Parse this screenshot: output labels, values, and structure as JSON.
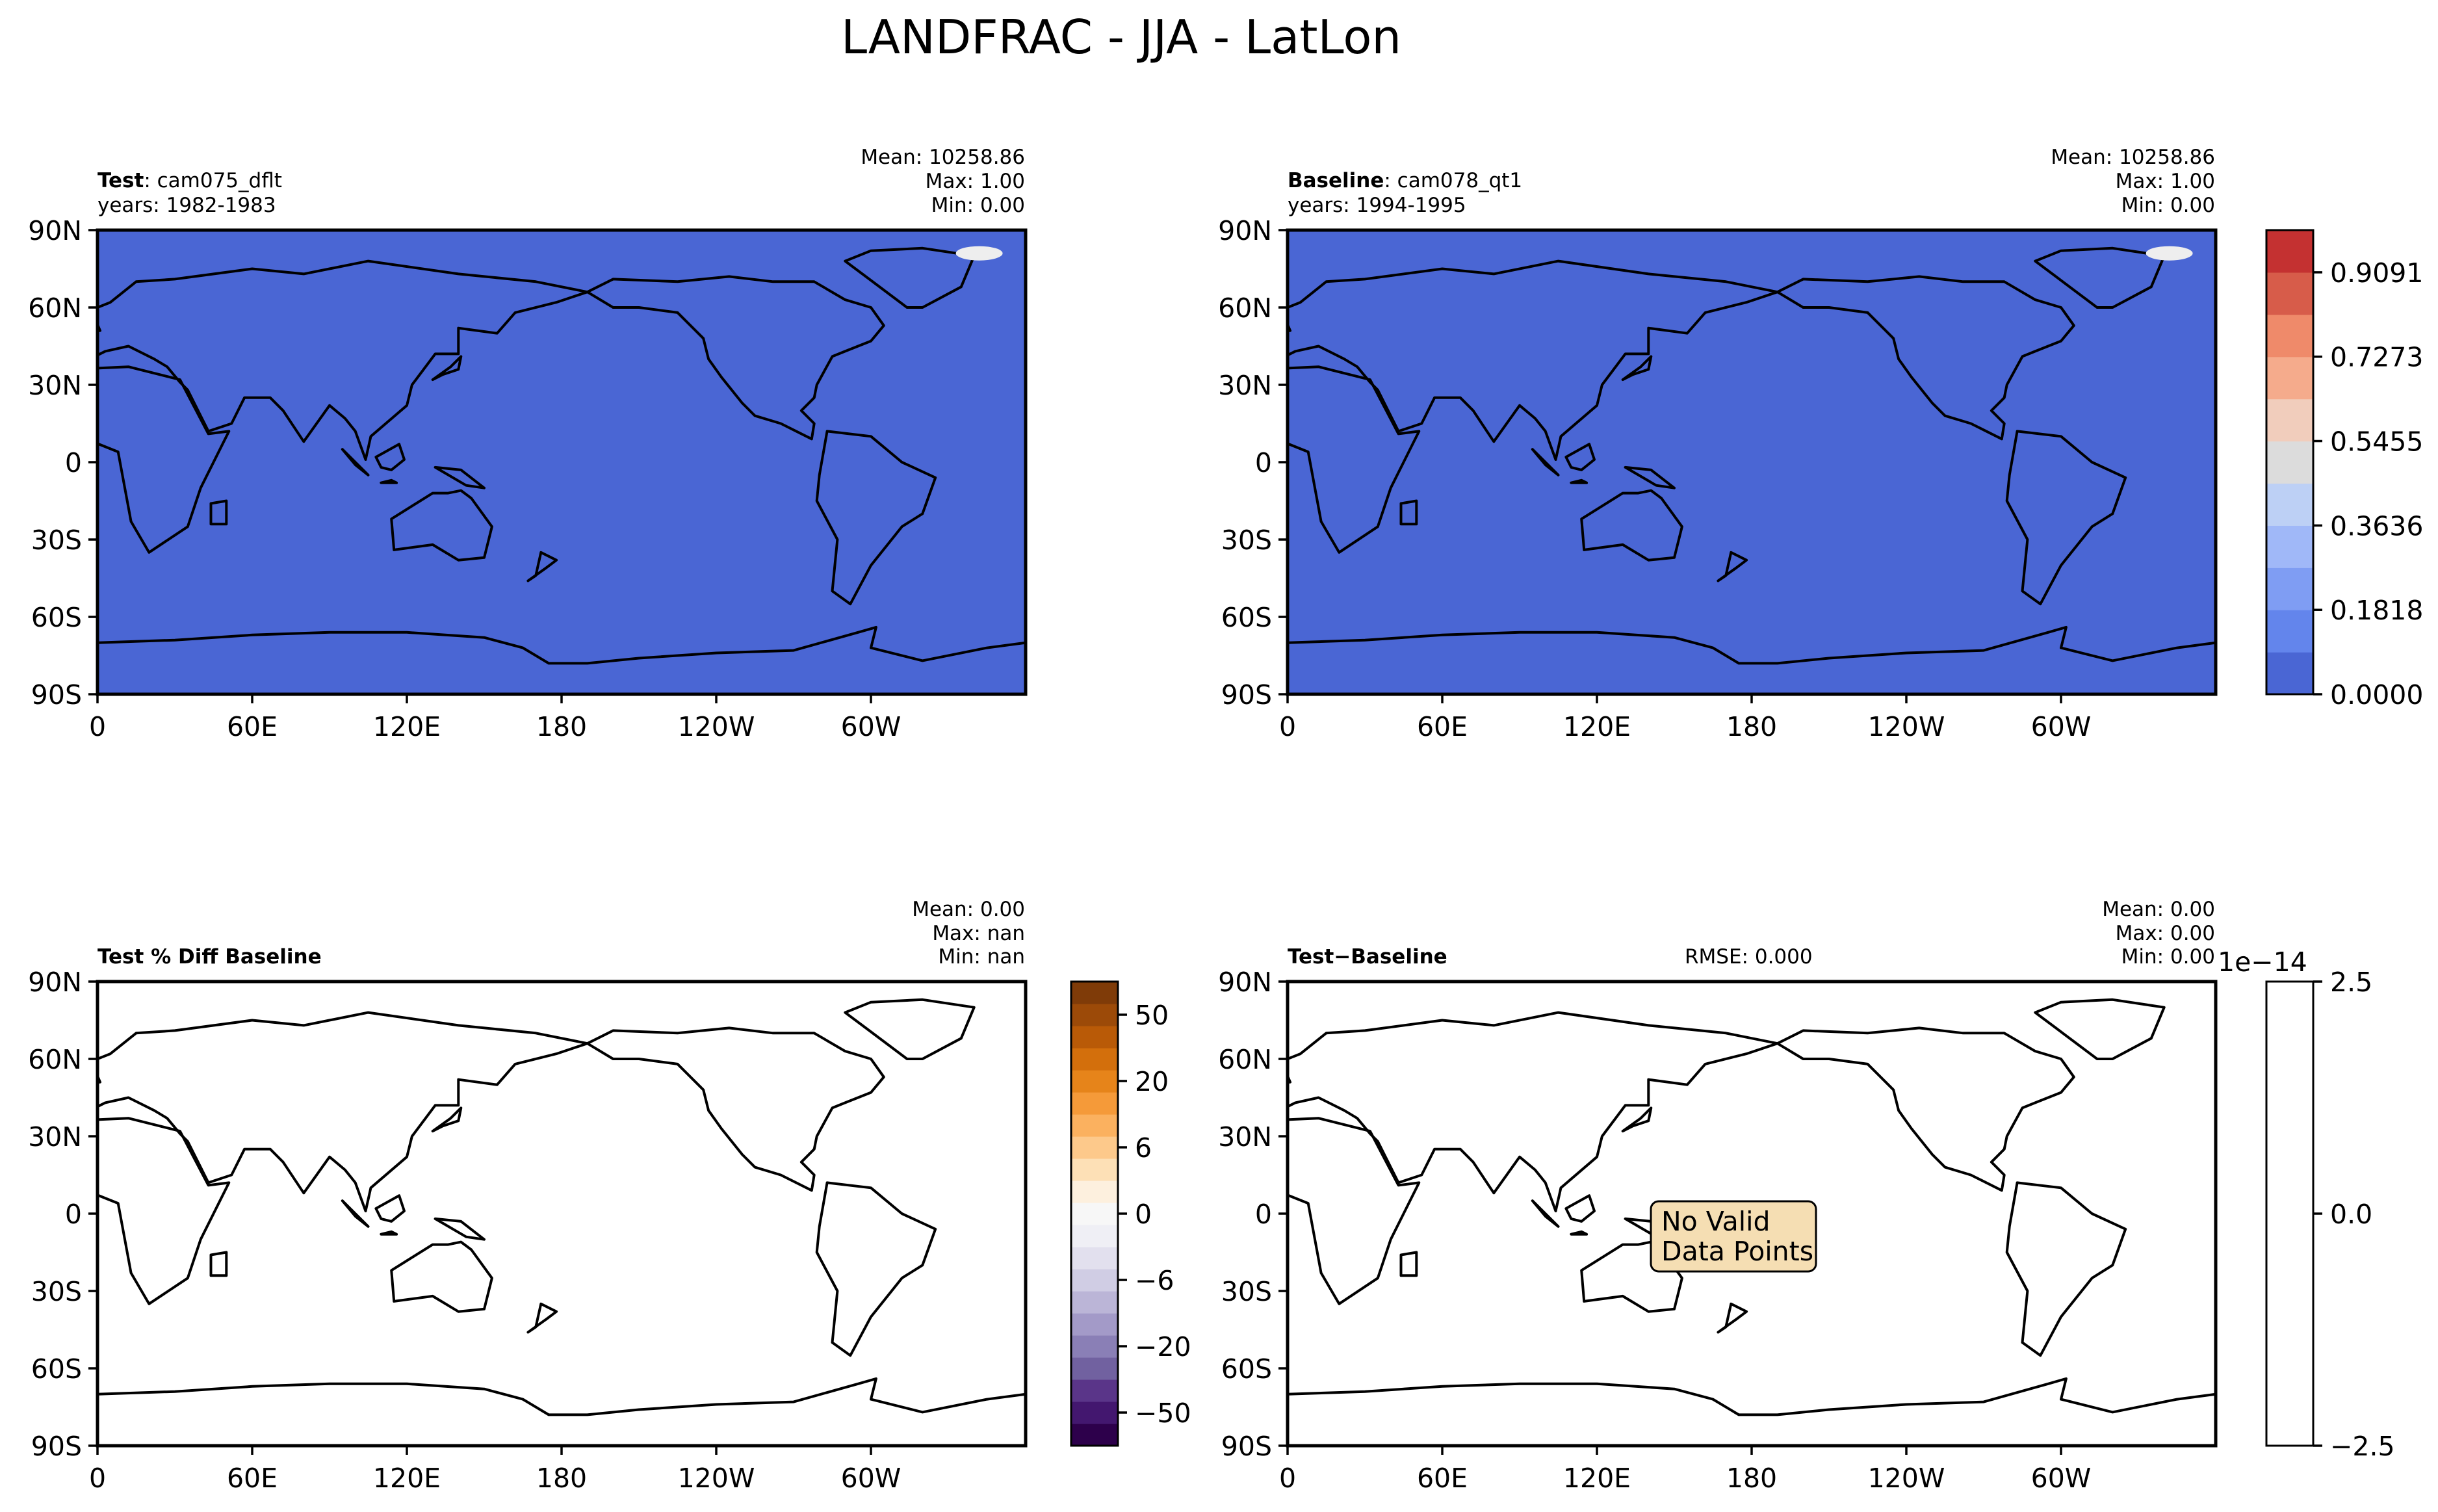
{
  "figure_title": "LANDFRAC - JJA - LatLon",
  "lat_ticks": [
    "90N",
    "60N",
    "30N",
    "0",
    "30S",
    "60S",
    "90S"
  ],
  "lon_ticks": [
    "0",
    "60E",
    "120E",
    "180",
    "120W",
    "60W"
  ],
  "colors": {
    "land": "#c43131",
    "ocean": "#4a66d4",
    "diff_land": "#eff0f4",
    "background": "#ffffff"
  },
  "panels": {
    "test": {
      "label_bold": "Test",
      "label_rest": ": cam075_dflt",
      "years": "years: 1982-1983",
      "stats": [
        "Mean: 10258.86",
        "Max:  1.00",
        "Min:  0.00"
      ]
    },
    "baseline": {
      "label_bold": "Baseline",
      "label_rest": ": cam078_qt1",
      "years": "years: 1994-1995",
      "stats": [
        "Mean: 10258.86",
        "Max:  1.00",
        "Min:  0.00"
      ]
    },
    "pct_diff": {
      "label_bold": "Test % Diff Baseline",
      "stats": [
        "Mean:  0.00",
        "Max:    nan",
        "Min:    nan"
      ]
    },
    "diff": {
      "label_bold": "Test−Baseline",
      "rmse": "RMSE: 0.000",
      "stats": [
        "Mean:  0.00",
        "Max:  0.00",
        "Min:  0.00"
      ],
      "annotation": [
        "No Valid",
        "Data Points"
      ]
    }
  },
  "chart_data": [
    {
      "type": "heatmap",
      "title": "Test: cam075_dflt",
      "variable": "LANDFRAC",
      "xlabel": "",
      "ylabel": "",
      "xlim": [
        0,
        360
      ],
      "ylim": [
        -90,
        90
      ],
      "mean": 10258.86,
      "max": 1.0,
      "min": 0.0
    },
    {
      "type": "heatmap",
      "title": "Baseline: cam078_qt1",
      "variable": "LANDFRAC",
      "xlabel": "",
      "ylabel": "",
      "xlim": [
        0,
        360
      ],
      "ylim": [
        -90,
        90
      ],
      "mean": 10258.86,
      "max": 1.0,
      "min": 0.0
    },
    {
      "type": "heatmap",
      "title": "Test % Diff Baseline",
      "xlabel": "",
      "ylabel": "",
      "xlim": [
        0,
        360
      ],
      "ylim": [
        -90,
        90
      ],
      "mean": 0.0,
      "max": null,
      "min": null
    },
    {
      "type": "heatmap",
      "title": "Test-Baseline",
      "xlabel": "",
      "ylabel": "",
      "xlim": [
        0,
        360
      ],
      "ylim": [
        -90,
        90
      ],
      "mean": 0.0,
      "max": 0.0,
      "min": 0.0,
      "rmse": 0.0
    }
  ],
  "colorbars": {
    "main": {
      "range": [
        0,
        1
      ],
      "tick_labels": [
        "0.0000",
        "0.1818",
        "0.3636",
        "0.5455",
        "0.7273",
        "0.9091"
      ],
      "tick_values": [
        0.0,
        0.1818,
        0.3636,
        0.5455,
        0.7273,
        0.9091
      ],
      "colors": [
        "#4a66d4",
        "#6385ec",
        "#7f9df3",
        "#a0b8f8",
        "#bdd0f5",
        "#dcdcdc",
        "#f1cdbc",
        "#f5ab8c",
        "#ef8a6a",
        "#d75c4a",
        "#c43131"
      ]
    },
    "pct": {
      "tick_labels": [
        "50",
        "20",
        "6",
        "0",
        "−6",
        "−20",
        "−50"
      ],
      "colors": [
        "#2d004b",
        "#43176f",
        "#5a3589",
        "#7161a0",
        "#8a7fb6",
        "#a39ac8",
        "#bbb5d7",
        "#d0cde4",
        "#e2e0ee",
        "#efeff5",
        "#f7f7f7",
        "#fdf0de",
        "#fde0b6",
        "#fdc98b",
        "#fbb15f",
        "#f59a39",
        "#e6841a",
        "#d36f0c",
        "#b95a07",
        "#9c4a08",
        "#7f3b08"
      ]
    },
    "diff": {
      "tick_labels": [
        "2.5",
        "0.0",
        "−2.5"
      ],
      "exponent": "1e−14"
    }
  }
}
